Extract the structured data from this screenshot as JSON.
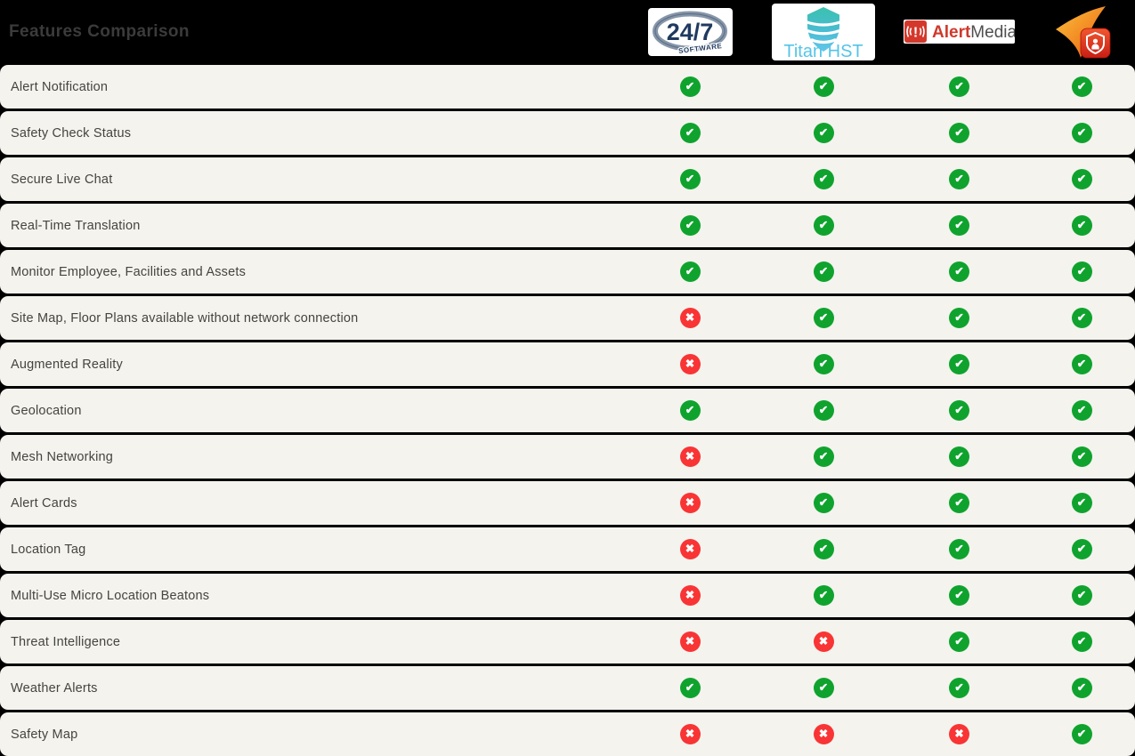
{
  "header": {
    "title": "Features Comparison"
  },
  "logos": {
    "software247": {
      "number": "24/7",
      "word": "SOFTWARE"
    },
    "titanhst": {
      "name": "Titan HST"
    },
    "alertmedia": {
      "first": "Alert",
      "second": "Media",
      "glyph": "!"
    },
    "shieldapp": {
      "description": "orange-swoosh-with-red-shield-badge"
    }
  },
  "icons": {
    "check": {
      "glyph": "✔",
      "color": "#0fa32e"
    },
    "cross": {
      "glyph": "✖",
      "color": "#f93434"
    }
  },
  "colors": {
    "page_bg": "#000000",
    "row_bg": "#f4f3ee",
    "title_color": "#3b3b3b",
    "label_color": "#45443f",
    "check_green": "#0fa32e",
    "cross_red": "#f93434"
  },
  "features": [
    {
      "label": "Alert Notification",
      "marks": [
        "check",
        "check",
        "check",
        "check"
      ]
    },
    {
      "label": "Safety Check Status",
      "marks": [
        "check",
        "check",
        "check",
        "check"
      ]
    },
    {
      "label": "Secure Live Chat",
      "marks": [
        "check",
        "check",
        "check",
        "check"
      ]
    },
    {
      "label": "Real-Time Translation",
      "marks": [
        "check",
        "check",
        "check",
        "check"
      ]
    },
    {
      "label": "Monitor Employee, Facilities and Assets",
      "marks": [
        "check",
        "check",
        "check",
        "check"
      ]
    },
    {
      "label": "Site Map, Floor Plans available without network connection",
      "marks": [
        "cross",
        "check",
        "check",
        "check"
      ]
    },
    {
      "label": "Augmented Reality",
      "marks": [
        "cross",
        "check",
        "check",
        "check"
      ]
    },
    {
      "label": "Geolocation",
      "marks": [
        "check",
        "check",
        "check",
        "check"
      ]
    },
    {
      "label": "Mesh Networking",
      "marks": [
        "cross",
        "check",
        "check",
        "check"
      ]
    },
    {
      "label": "Alert Cards",
      "marks": [
        "cross",
        "check",
        "check",
        "check"
      ]
    },
    {
      "label": "Location Tag",
      "marks": [
        "cross",
        "check",
        "check",
        "check"
      ]
    },
    {
      "label": "Multi-Use Micro Location Beatons",
      "marks": [
        "cross",
        "check",
        "check",
        "check"
      ]
    },
    {
      "label": "Threat Intelligence",
      "marks": [
        "cross",
        "cross",
        "check",
        "check"
      ]
    },
    {
      "label": "Weather Alerts",
      "marks": [
        "check",
        "check",
        "check",
        "check"
      ]
    },
    {
      "label": "Safety Map",
      "marks": [
        "cross",
        "cross",
        "cross",
        "check"
      ]
    }
  ]
}
